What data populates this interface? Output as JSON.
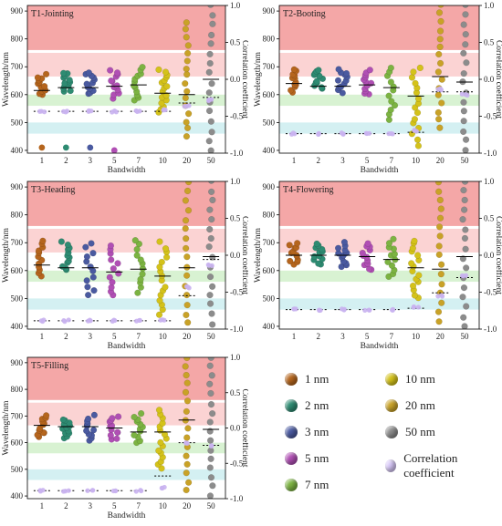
{
  "chart_data": [
    {
      "type": "scatter",
      "title": "T1-Jointing",
      "xlabel": "Bandwidth",
      "ylabel": "Wavelength/nm",
      "y2label": "Correlation coefficient",
      "categories": [
        "1",
        "2",
        "3",
        "5",
        "7",
        "10",
        "20",
        "50"
      ],
      "ylim": [
        390,
        920
      ],
      "y2lim": [
        -1.0,
        1.0
      ],
      "yticks": [
        400,
        500,
        600,
        700,
        800,
        900
      ],
      "y2ticks": [
        "-1.0",
        "-0.5",
        "0.0",
        "0.5",
        "1.0"
      ],
      "bands": [
        {
          "range": [
            760,
            920
          ],
          "color": "#f4a7a7"
        },
        {
          "range": [
            665,
            750
          ],
          "color": "#fbd3d3"
        },
        {
          "range": [
            560,
            600
          ],
          "color": "#d8f2d2"
        },
        {
          "range": [
            460,
            500
          ],
          "color": "#d4f0f2"
        }
      ],
      "spreads": [
        [
          600,
          670
        ],
        [
          610,
          680
        ],
        [
          600,
          680
        ],
        [
          590,
          690
        ],
        [
          580,
          700
        ],
        [
          540,
          690
        ],
        [
          450,
          860
        ],
        [
          400,
          920
        ]
      ],
      "means": [
        615,
        625,
        625,
        630,
        635,
        605,
        600,
        655
      ],
      "corr_lines": [
        540,
        540,
        540,
        540,
        540,
        540,
        570,
        590
      ],
      "corr_points": [
        540,
        540,
        540,
        540,
        540,
        545,
        560,
        580
      ],
      "outliers": [
        [
          0,
          410
        ],
        [
          1,
          410
        ],
        [
          2,
          410
        ],
        [
          3,
          400
        ]
      ]
    },
    {
      "type": "scatter",
      "title": "T2-Booting",
      "xlabel": "Bandwidth",
      "ylabel": "Wavelength/nm",
      "y2label": "Correlation coefficient",
      "categories": [
        "1",
        "2",
        "3",
        "5",
        "7",
        "10",
        "20",
        "50"
      ],
      "ylim": [
        390,
        920
      ],
      "y2lim": [
        -1.0,
        1.0
      ],
      "yticks": [
        400,
        500,
        600,
        700,
        800,
        900
      ],
      "y2ticks": [
        "-1.0",
        "-0.5",
        "0.0",
        "0.5",
        "1.0"
      ],
      "bands": [
        {
          "range": [
            760,
            920
          ],
          "color": "#f4a7a7"
        },
        {
          "range": [
            665,
            750
          ],
          "color": "#fbd3d3"
        },
        {
          "range": [
            560,
            600
          ],
          "color": "#d8f2d2"
        },
        {
          "range": [
            460,
            500
          ],
          "color": "#d4f0f2"
        }
      ],
      "spreads": [
        [
          610,
          690
        ],
        [
          620,
          690
        ],
        [
          610,
          690
        ],
        [
          600,
          690
        ],
        [
          510,
          700
        ],
        [
          420,
          700
        ],
        [
          480,
          920
        ],
        [
          400,
          920
        ]
      ],
      "means": [
        640,
        630,
        630,
        635,
        625,
        595,
        665,
        645
      ],
      "corr_lines": [
        460,
        460,
        460,
        460,
        460,
        465,
        610,
        610
      ],
      "corr_points": [
        460,
        460,
        460,
        460,
        460,
        470,
        620,
        600
      ],
      "outliers": []
    },
    {
      "type": "scatter",
      "title": "T3-Heading",
      "xlabel": "Bandwidth",
      "ylabel": "Wavelength/nm",
      "y2label": "Correlation coefficient",
      "categories": [
        "1",
        "2",
        "3",
        "5",
        "7",
        "10",
        "20",
        "50"
      ],
      "ylim": [
        390,
        920
      ],
      "y2lim": [
        -1.0,
        1.0
      ],
      "yticks": [
        400,
        500,
        600,
        700,
        800,
        900
      ],
      "y2ticks": [
        "-1.0",
        "-0.5",
        "0.0",
        "0.5",
        "1.0"
      ],
      "bands": [
        {
          "range": [
            760,
            920
          ],
          "color": "#f4a7a7"
        },
        {
          "range": [
            665,
            750
          ],
          "color": "#fbd3d3"
        },
        {
          "range": [
            560,
            600
          ],
          "color": "#d8f2d2"
        },
        {
          "range": [
            460,
            500
          ],
          "color": "#d4f0f2"
        }
      ],
      "spreads": [
        [
          580,
          710
        ],
        [
          600,
          700
        ],
        [
          510,
          700
        ],
        [
          510,
          690
        ],
        [
          520,
          710
        ],
        [
          440,
          700
        ],
        [
          410,
          920
        ],
        [
          410,
          920
        ]
      ],
      "means": [
        620,
        610,
        610,
        595,
        605,
        580,
        610,
        650
      ],
      "corr_lines": [
        420,
        420,
        420,
        420,
        420,
        420,
        510,
        640
      ],
      "corr_points": [
        420,
        420,
        420,
        420,
        420,
        425,
        540,
        620
      ],
      "outliers": []
    },
    {
      "type": "scatter",
      "title": "T4-Flowering",
      "xlabel": "Bandwidth",
      "ylabel": "Wavelength/nm",
      "y2label": "Correlation coefficient",
      "categories": [
        "1",
        "2",
        "3",
        "5",
        "7",
        "10",
        "20",
        "50"
      ],
      "ylim": [
        390,
        920
      ],
      "y2lim": [
        -1.0,
        1.0
      ],
      "yticks": [
        400,
        500,
        600,
        700,
        800,
        900
      ],
      "y2ticks": [
        "-1.0",
        "-0.5",
        "0.0",
        "0.5",
        "1.0"
      ],
      "bands": [
        {
          "range": [
            760,
            920
          ],
          "color": "#f4a7a7"
        },
        {
          "range": [
            665,
            750
          ],
          "color": "#fbd3d3"
        },
        {
          "range": [
            560,
            600
          ],
          "color": "#d8f2d2"
        },
        {
          "range": [
            460,
            500
          ],
          "color": "#d4f0f2"
        }
      ],
      "spreads": [
        [
          620,
          700
        ],
        [
          620,
          700
        ],
        [
          610,
          700
        ],
        [
          600,
          700
        ],
        [
          580,
          710
        ],
        [
          500,
          710
        ],
        [
          420,
          920
        ],
        [
          400,
          920
        ]
      ],
      "means": [
        655,
        655,
        655,
        650,
        640,
        610,
        605,
        650
      ],
      "corr_lines": [
        460,
        460,
        460,
        460,
        460,
        465,
        520,
        575
      ],
      "corr_points": [
        460,
        460,
        460,
        460,
        460,
        470,
        510,
        580
      ],
      "outliers": []
    },
    {
      "type": "scatter",
      "title": "T5-Filling",
      "xlabel": "Bandwidth",
      "ylabel": "Wavelength/nm",
      "y2label": "Correlation coefficient",
      "categories": [
        "1",
        "2",
        "3",
        "5",
        "7",
        "10",
        "20",
        "50"
      ],
      "ylim": [
        390,
        920
      ],
      "y2lim": [
        -1.0,
        1.0
      ],
      "yticks": [
        400,
        500,
        600,
        700,
        800,
        900
      ],
      "y2ticks": [
        "-1.0",
        "-0.5",
        "0.0",
        "0.5",
        "1.0"
      ],
      "bands": [
        {
          "range": [
            760,
            920
          ],
          "color": "#f4a7a7"
        },
        {
          "range": [
            665,
            750
          ],
          "color": "#fbd3d3"
        },
        {
          "range": [
            560,
            600
          ],
          "color": "#d8f2d2"
        },
        {
          "range": [
            460,
            500
          ],
          "color": "#d4f0f2"
        }
      ],
      "spreads": [
        [
          620,
          700
        ],
        [
          620,
          690
        ],
        [
          610,
          700
        ],
        [
          610,
          700
        ],
        [
          600,
          710
        ],
        [
          500,
          720
        ],
        [
          420,
          920
        ],
        [
          400,
          920
        ]
      ],
      "means": [
        665,
        660,
        660,
        655,
        640,
        640,
        685,
        650
      ],
      "corr_lines": [
        420,
        420,
        420,
        420,
        420,
        475,
        600,
        590
      ],
      "corr_points": [
        420,
        420,
        420,
        420,
        420,
        430,
        600,
        590
      ],
      "outliers": []
    }
  ],
  "series_colors": [
    "#b5651d",
    "#2e8b72",
    "#4a5aa0",
    "#b04fb4",
    "#7cb342",
    "#d4c21a",
    "#c9a227",
    "#8c8c8c"
  ],
  "corr_color": "#c9b3f0",
  "legend": {
    "items": [
      {
        "label": "1 nm",
        "color": "#b5651d"
      },
      {
        "label": "2 nm",
        "color": "#2e8b72"
      },
      {
        "label": "3 nm",
        "color": "#4a5aa0"
      },
      {
        "label": "5 nm",
        "color": "#b04fb4"
      },
      {
        "label": "7 nm",
        "color": "#7cb342"
      },
      {
        "label": "10 nm",
        "color": "#d4c21a"
      },
      {
        "label": "20 nm",
        "color": "#c9a227"
      },
      {
        "label": "50 nm",
        "color": "#8c8c8c"
      },
      {
        "label": "Correlation coefficient",
        "color": "#d8c8f8"
      }
    ]
  }
}
